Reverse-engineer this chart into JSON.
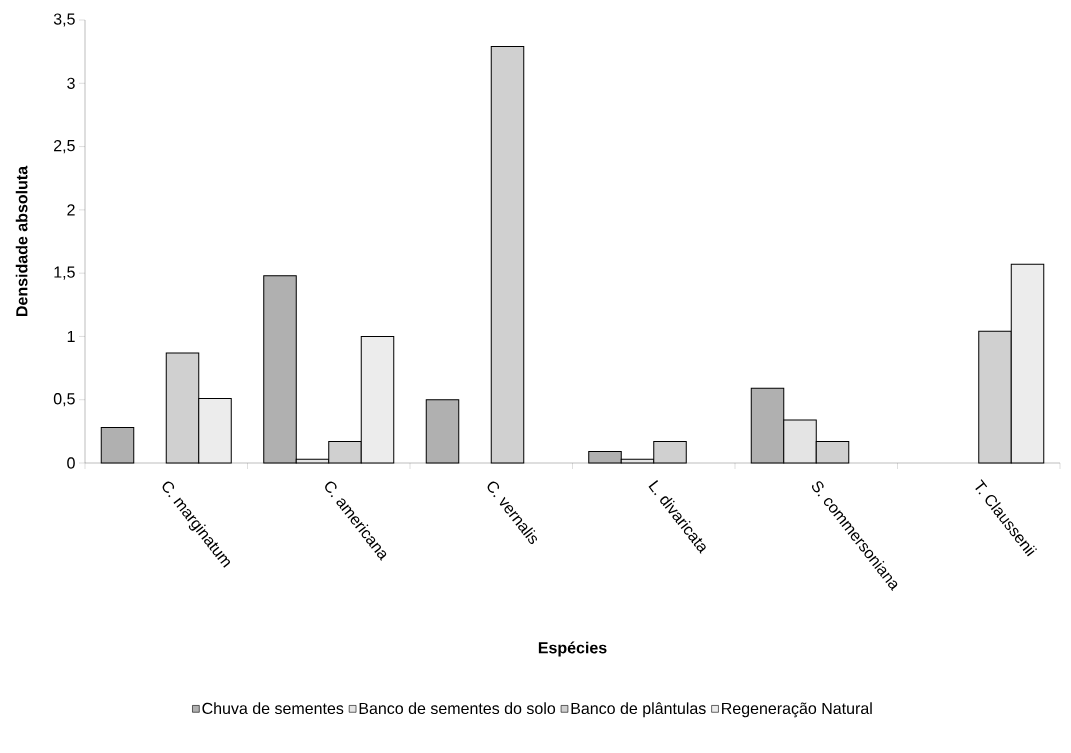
{
  "chart_data": {
    "type": "bar",
    "xlabel": "Espécies",
    "ylabel": "Densidade absoluta",
    "categories": [
      "C. marginatum",
      "C. americana",
      "C. vernalis",
      "L. divaricata",
      "S. commersoniana",
      "T. Claussenii"
    ],
    "series": [
      {
        "name": "Chuva de sementes",
        "color": "#b0b0b0",
        "values": [
          0.28,
          1.48,
          0.5,
          0.09,
          0.59,
          null
        ]
      },
      {
        "name": "Banco de sementes do solo",
        "color": "#e4e4e4",
        "values": [
          null,
          0.03,
          null,
          0.03,
          0.34,
          null
        ]
      },
      {
        "name": "Banco de plântulas",
        "color": "#d0d0d0",
        "values": [
          0.87,
          0.17,
          3.29,
          0.17,
          0.17,
          1.04
        ]
      },
      {
        "name": "Regeneração Natural",
        "color": "#ececec",
        "values": [
          0.51,
          1.0,
          null,
          null,
          null,
          1.57
        ]
      }
    ],
    "ylim": [
      0,
      3.5
    ],
    "yticks": [
      0,
      {
        "value": 0.5,
        "label": "0,5"
      },
      1,
      {
        "value": 1.5,
        "label": "1,5"
      },
      2,
      {
        "value": 2.5,
        "label": "2,5"
      },
      3,
      {
        "value": 3.5,
        "label": "3,5"
      }
    ],
    "grid": false,
    "legend": "bottom"
  }
}
